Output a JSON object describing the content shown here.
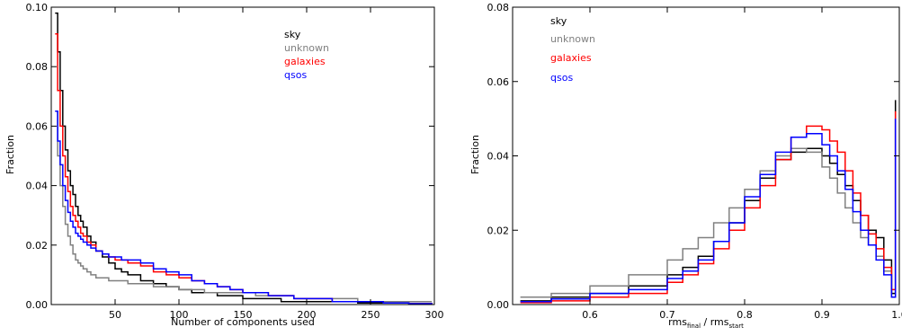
{
  "chart_data": [
    {
      "type": "line",
      "step": true,
      "xlabel": "Number of components used",
      "ylabel": "Fraction",
      "xlim": [
        0,
        300
      ],
      "ylim": [
        0,
        0.1
      ],
      "xticks": [
        50,
        100,
        150,
        200,
        250,
        300
      ],
      "yticks": [
        0.0,
        0.02,
        0.04,
        0.06,
        0.08,
        0.1
      ],
      "xtick_labels": [
        "50",
        "100",
        "150",
        "200",
        "250",
        "300"
      ],
      "ytick_labels": [
        "0.00",
        "0.02",
        "0.04",
        "0.06",
        "0.08",
        "0.10"
      ],
      "legend_position": "top-right",
      "series": [
        {
          "name": "sky",
          "color": "#000000",
          "x": [
            3,
            5,
            7,
            9,
            11,
            13,
            15,
            17,
            19,
            21,
            23,
            25,
            28,
            31,
            35,
            40,
            45,
            50,
            55,
            60,
            70,
            80,
            90,
            100,
            110,
            120,
            130,
            140,
            150,
            160,
            170,
            180,
            190,
            200,
            220,
            240,
            260,
            280,
            298
          ],
          "y": [
            0.098,
            0.085,
            0.072,
            0.06,
            0.052,
            0.045,
            0.04,
            0.037,
            0.033,
            0.03,
            0.028,
            0.026,
            0.023,
            0.021,
            0.018,
            0.016,
            0.014,
            0.012,
            0.011,
            0.01,
            0.008,
            0.007,
            0.006,
            0.005,
            0.004,
            0.004,
            0.003,
            0.003,
            0.002,
            0.002,
            0.002,
            0.001,
            0.001,
            0.001,
            0.001,
            0.0005,
            0.0005,
            0.0003,
            0.0002
          ]
        },
        {
          "name": "unknown",
          "color": "#808080",
          "x": [
            3,
            5,
            7,
            9,
            11,
            13,
            15,
            17,
            19,
            21,
            23,
            25,
            28,
            31,
            35,
            40,
            45,
            50,
            55,
            60,
            70,
            80,
            90,
            100,
            110,
            120,
            130,
            140,
            150,
            160,
            170,
            180,
            190,
            200,
            220,
            240,
            260,
            280,
            298
          ],
          "y": [
            0.065,
            0.05,
            0.04,
            0.033,
            0.027,
            0.023,
            0.02,
            0.017,
            0.015,
            0.014,
            0.013,
            0.012,
            0.011,
            0.01,
            0.009,
            0.009,
            0.008,
            0.008,
            0.008,
            0.007,
            0.007,
            0.006,
            0.006,
            0.005,
            0.005,
            0.004,
            0.004,
            0.004,
            0.004,
            0.003,
            0.003,
            0.003,
            0.002,
            0.002,
            0.002,
            0.001,
            0.001,
            0.001,
            0.001
          ]
        },
        {
          "name": "galaxies",
          "color": "#ff0000",
          "x": [
            3,
            5,
            7,
            9,
            11,
            13,
            15,
            17,
            19,
            21,
            23,
            25,
            28,
            31,
            35,
            40,
            45,
            50,
            55,
            60,
            70,
            80,
            90,
            100,
            110,
            120,
            130,
            140,
            150,
            160,
            170,
            180,
            190,
            200,
            220,
            240,
            260,
            280,
            298
          ],
          "y": [
            0.091,
            0.072,
            0.06,
            0.05,
            0.043,
            0.038,
            0.033,
            0.03,
            0.028,
            0.026,
            0.024,
            0.023,
            0.021,
            0.02,
            0.018,
            0.017,
            0.016,
            0.015,
            0.015,
            0.014,
            0.013,
            0.011,
            0.01,
            0.009,
            0.008,
            0.007,
            0.006,
            0.005,
            0.004,
            0.004,
            0.003,
            0.003,
            0.002,
            0.002,
            0.001,
            0.001,
            0.0005,
            0.0003,
            0.0002
          ]
        },
        {
          "name": "qsos",
          "color": "#0000ff",
          "x": [
            3,
            5,
            7,
            9,
            11,
            13,
            15,
            17,
            19,
            21,
            23,
            25,
            28,
            31,
            35,
            40,
            45,
            50,
            55,
            60,
            70,
            80,
            90,
            100,
            110,
            120,
            130,
            140,
            150,
            160,
            170,
            180,
            190,
            200,
            220,
            240,
            260,
            280,
            298
          ],
          "y": [
            0.065,
            0.055,
            0.047,
            0.04,
            0.035,
            0.031,
            0.028,
            0.026,
            0.024,
            0.023,
            0.022,
            0.021,
            0.02,
            0.019,
            0.018,
            0.017,
            0.016,
            0.016,
            0.015,
            0.015,
            0.014,
            0.012,
            0.011,
            0.01,
            0.008,
            0.007,
            0.006,
            0.005,
            0.004,
            0.004,
            0.003,
            0.003,
            0.002,
            0.002,
            0.001,
            0.001,
            0.0005,
            0.0003,
            0.0002
          ]
        }
      ]
    },
    {
      "type": "line",
      "step": true,
      "xlabel_main": "rms",
      "xlabel_sub1": "final",
      "xlabel_mid": " / rms",
      "xlabel_sub2": "start",
      "ylabel": "Fraction",
      "xlim": [
        0.5,
        1.0
      ],
      "ylim": [
        0,
        0.08
      ],
      "xticks": [
        0.6,
        0.7,
        0.8,
        0.9,
        1.0
      ],
      "yticks": [
        0.0,
        0.02,
        0.04,
        0.06,
        0.08
      ],
      "xtick_labels": [
        "0.6",
        "0.7",
        "0.8",
        "0.9",
        "1.0"
      ],
      "ytick_labels": [
        "0.00",
        "0.02",
        "0.04",
        "0.06",
        "0.08"
      ],
      "legend_position": "top-left",
      "series": [
        {
          "name": "sky",
          "color": "#000000",
          "x": [
            0.51,
            0.55,
            0.6,
            0.65,
            0.7,
            0.72,
            0.74,
            0.76,
            0.78,
            0.8,
            0.82,
            0.84,
            0.86,
            0.88,
            0.9,
            0.91,
            0.92,
            0.93,
            0.94,
            0.95,
            0.96,
            0.97,
            0.98,
            0.99,
            0.995
          ],
          "y": [
            0.001,
            0.002,
            0.003,
            0.005,
            0.008,
            0.01,
            0.013,
            0.017,
            0.022,
            0.028,
            0.034,
            0.039,
            0.041,
            0.042,
            0.04,
            0.038,
            0.035,
            0.032,
            0.028,
            0.024,
            0.02,
            0.018,
            0.012,
            0.003,
            0.055
          ]
        },
        {
          "name": "unknown",
          "color": "#808080",
          "x": [
            0.51,
            0.55,
            0.6,
            0.65,
            0.7,
            0.72,
            0.74,
            0.76,
            0.78,
            0.8,
            0.82,
            0.84,
            0.86,
            0.88,
            0.9,
            0.91,
            0.92,
            0.93,
            0.94,
            0.95,
            0.96,
            0.97,
            0.98,
            0.99,
            0.995
          ],
          "y": [
            0.002,
            0.003,
            0.005,
            0.008,
            0.012,
            0.015,
            0.018,
            0.022,
            0.026,
            0.031,
            0.036,
            0.04,
            0.042,
            0.041,
            0.037,
            0.034,
            0.03,
            0.026,
            0.022,
            0.018,
            0.016,
            0.013,
            0.009,
            0.002,
            0.05
          ]
        },
        {
          "name": "galaxies",
          "color": "#ff0000",
          "x": [
            0.51,
            0.55,
            0.6,
            0.65,
            0.7,
            0.72,
            0.74,
            0.76,
            0.78,
            0.8,
            0.82,
            0.84,
            0.86,
            0.88,
            0.9,
            0.91,
            0.92,
            0.93,
            0.94,
            0.95,
            0.96,
            0.97,
            0.98,
            0.99,
            0.995
          ],
          "y": [
            0.0005,
            0.001,
            0.002,
            0.003,
            0.006,
            0.008,
            0.011,
            0.015,
            0.02,
            0.026,
            0.032,
            0.039,
            0.045,
            0.048,
            0.047,
            0.044,
            0.041,
            0.036,
            0.03,
            0.024,
            0.019,
            0.015,
            0.01,
            0.004,
            0.052
          ]
        },
        {
          "name": "qsos",
          "color": "#0000ff",
          "x": [
            0.51,
            0.55,
            0.6,
            0.65,
            0.7,
            0.72,
            0.74,
            0.76,
            0.78,
            0.8,
            0.82,
            0.84,
            0.86,
            0.88,
            0.9,
            0.91,
            0.92,
            0.93,
            0.94,
            0.95,
            0.96,
            0.97,
            0.98,
            0.99,
            0.995
          ],
          "y": [
            0.0008,
            0.0015,
            0.003,
            0.004,
            0.007,
            0.009,
            0.012,
            0.017,
            0.022,
            0.029,
            0.035,
            0.041,
            0.045,
            0.046,
            0.043,
            0.04,
            0.036,
            0.031,
            0.025,
            0.02,
            0.016,
            0.012,
            0.008,
            0.002,
            0.05
          ]
        }
      ]
    }
  ]
}
